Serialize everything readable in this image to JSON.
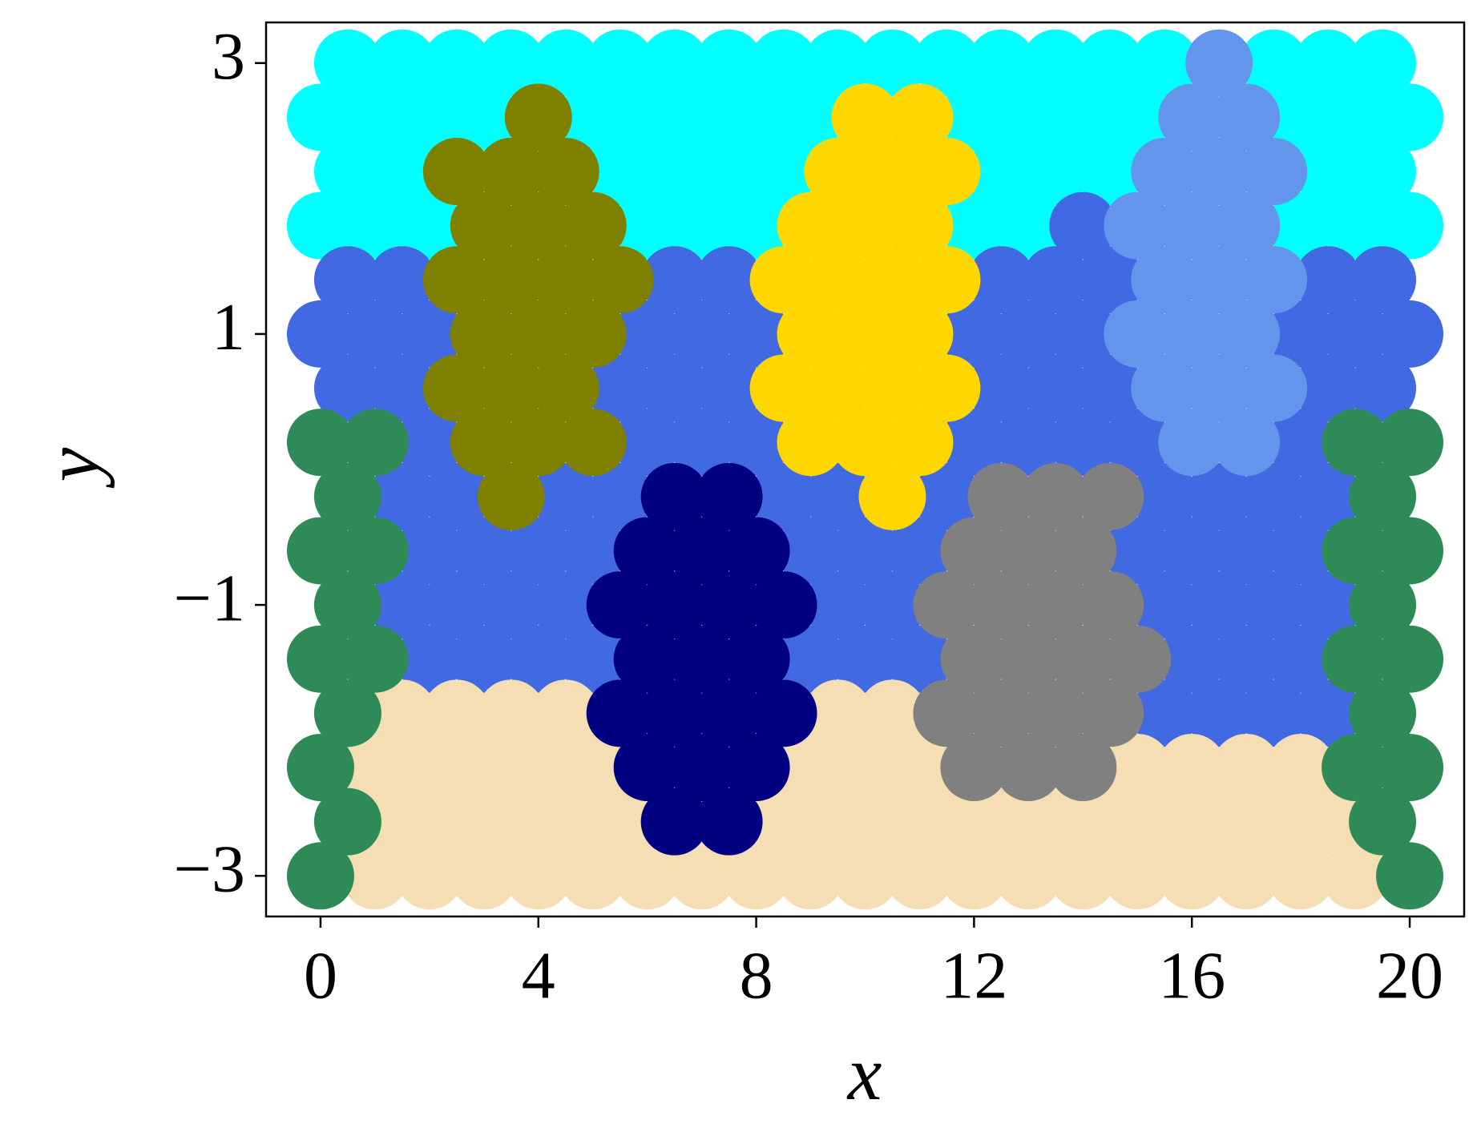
{
  "chart_data": {
    "type": "scatter",
    "x_label": "x",
    "y_label": "y",
    "xlim": [
      -1,
      21
    ],
    "ylim": [
      -3.3,
      3.3
    ],
    "xticks": [
      0,
      4,
      8,
      12,
      16,
      20
    ],
    "yticks": [
      3,
      1,
      {
        "value": -1,
        "label": "−1"
      },
      {
        "value": -3,
        "label": "−3"
      }
    ],
    "grid": false,
    "series": [
      {
        "color": "#00ffff",
        "x": [
          0.5,
          1.5,
          2.5,
          3.5,
          4.5,
          5.5,
          6.5,
          7.5,
          8.5,
          9.5,
          10.5,
          11.5,
          12.5,
          13.5,
          14.5,
          15.5,
          17.5,
          18.5,
          19.5,
          0,
          1,
          2,
          3,
          5,
          6,
          7,
          8,
          9,
          12,
          13,
          14,
          15,
          18,
          19,
          20,
          0.5,
          1.5,
          5.5,
          6.5,
          7.5,
          8.5,
          12.5,
          13.5,
          14.5,
          18.5,
          19.5,
          0,
          1,
          2,
          6,
          7,
          8,
          12,
          13,
          18,
          19,
          20
        ],
        "y": [
          3,
          3,
          3,
          3,
          3,
          3,
          3,
          3,
          3,
          3,
          3,
          3,
          3,
          3,
          3,
          3,
          3,
          3,
          3,
          2.6,
          2.6,
          2.6,
          2.6,
          2.6,
          2.6,
          2.6,
          2.6,
          2.6,
          2.6,
          2.6,
          2.6,
          2.6,
          2.6,
          2.6,
          2.6,
          2.2,
          2.2,
          2.2,
          2.2,
          2.2,
          2.2,
          2.2,
          2.2,
          2.2,
          2.2,
          2.2,
          1.8,
          1.8,
          1.8,
          1.8,
          1.8,
          1.8,
          1.8,
          1.8,
          1.8,
          1.8,
          1.8
        ]
      },
      {
        "color": "#4169e1",
        "x": [
          14,
          0.5,
          1.5,
          6.5,
          7.5,
          12.5,
          13.5,
          14.5,
          18.5,
          19.5,
          0,
          1,
          2,
          6,
          7,
          8,
          12,
          13,
          14,
          18,
          19,
          20,
          0.5,
          1.5,
          5.5,
          6.5,
          7.5,
          12.5,
          13.5,
          14.5,
          18.5,
          19.5,
          2,
          6,
          7,
          8,
          12,
          13,
          14,
          15,
          18,
          1.5,
          2.5,
          4.5,
          5.5,
          8.5,
          9.5,
          11.5,
          15.5,
          16.5,
          17.5,
          18.5,
          2,
          3,
          4,
          5,
          9,
          10,
          11,
          15,
          16,
          17,
          18,
          1.5,
          2.5,
          3.5,
          4.5,
          9.5,
          10.5,
          15.5,
          16.5,
          17.5,
          18.5,
          2,
          3,
          4,
          5,
          9,
          10,
          11,
          16,
          17,
          18,
          15.5,
          16.5,
          17.5,
          18.5
        ],
        "y": [
          1.8,
          1.4,
          1.4,
          1.4,
          1.4,
          1.4,
          1.4,
          1.4,
          1.4,
          1.4,
          1,
          1,
          1,
          1,
          1,
          1,
          1,
          1,
          1,
          1,
          1,
          1,
          0.6,
          0.6,
          0.6,
          0.6,
          0.6,
          0.6,
          0.6,
          0.6,
          0.6,
          0.6,
          0.2,
          0.2,
          0.2,
          0.2,
          0.2,
          0.2,
          0.2,
          0.2,
          0.2,
          -0.2,
          -0.2,
          -0.2,
          -0.2,
          -0.2,
          -0.2,
          -0.2,
          -0.2,
          -0.2,
          -0.2,
          -0.2,
          -0.6,
          -0.6,
          -0.6,
          -0.6,
          -0.6,
          -0.6,
          -0.6,
          -0.6,
          -0.6,
          -0.6,
          -0.6,
          -1,
          -1,
          -1,
          -1,
          -1,
          -1,
          -1,
          -1,
          -1,
          -1,
          -1.4,
          -1.4,
          -1.4,
          -1.4,
          -1.4,
          -1.4,
          -1.4,
          -1.4,
          -1.4,
          -1.4,
          -1.8,
          -1.8,
          -1.8,
          -1.8
        ]
      },
      {
        "color": "#f5deb3",
        "x": [
          1.5,
          2.5,
          3.5,
          4.5,
          9.5,
          10.5,
          1,
          2,
          3,
          4,
          5,
          9,
          10,
          11,
          15,
          16,
          17,
          18,
          1.5,
          2.5,
          3.5,
          4.5,
          5.5,
          8.5,
          9.5,
          10.5,
          11.5,
          12.5,
          13.5,
          14.5,
          15.5,
          16.5,
          17.5,
          18.5,
          1,
          2,
          3,
          4,
          5,
          6,
          7,
          8,
          9,
          10,
          11,
          12,
          13,
          14,
          15,
          16,
          17,
          18,
          19
        ],
        "y": [
          -1.8,
          -1.8,
          -1.8,
          -1.8,
          -1.8,
          -1.8,
          -2.2,
          -2.2,
          -2.2,
          -2.2,
          -2.2,
          -2.2,
          -2.2,
          -2.2,
          -2.2,
          -2.2,
          -2.2,
          -2.2,
          -2.6,
          -2.6,
          -2.6,
          -2.6,
          -2.6,
          -2.6,
          -2.6,
          -2.6,
          -2.6,
          -2.6,
          -2.6,
          -2.6,
          -2.6,
          -2.6,
          -2.6,
          -2.6,
          -3,
          -3,
          -3,
          -3,
          -3,
          -3,
          -3,
          -3,
          -3,
          -3,
          -3,
          -3,
          -3,
          -3,
          -3,
          -3,
          -3,
          -3,
          -3
        ]
      },
      {
        "color": "#2e8b57",
        "x": [
          0,
          1,
          19,
          20,
          0.5,
          19.5,
          0,
          1,
          19,
          20,
          0.5,
          19.5,
          0,
          1,
          19,
          20,
          0.5,
          19.5,
          0,
          19,
          20,
          0.5,
          19.5,
          0,
          20
        ],
        "y": [
          0.2,
          0.2,
          0.2,
          0.2,
          -0.2,
          -0.2,
          -0.6,
          -0.6,
          -0.6,
          -0.6,
          -1,
          -1,
          -1.4,
          -1.4,
          -1.4,
          -1.4,
          -1.8,
          -1.8,
          -2.2,
          -2.2,
          -2.2,
          -2.6,
          -2.6,
          -3,
          -3
        ]
      },
      {
        "color": "#808000",
        "x": [
          4,
          2.5,
          3.5,
          4.5,
          3,
          4,
          5,
          2.5,
          3.5,
          4.5,
          5.5,
          3,
          4,
          5,
          2.5,
          3.5,
          4.5,
          3,
          4,
          5,
          3.5
        ],
        "y": [
          2.6,
          2.2,
          2.2,
          2.2,
          1.8,
          1.8,
          1.8,
          1.4,
          1.4,
          1.4,
          1.4,
          1,
          1,
          1,
          0.6,
          0.6,
          0.6,
          0.2,
          0.2,
          0.2,
          -0.2
        ]
      },
      {
        "color": "#ffd700",
        "x": [
          10,
          11,
          9.5,
          10.5,
          11.5,
          9,
          10,
          11,
          8.5,
          9.5,
          10.5,
          11.5,
          9,
          10,
          11,
          8.5,
          9.5,
          10.5,
          11.5,
          9,
          10,
          11,
          10.5
        ],
        "y": [
          2.6,
          2.6,
          2.2,
          2.2,
          2.2,
          1.8,
          1.8,
          1.8,
          1.4,
          1.4,
          1.4,
          1.4,
          1,
          1,
          1,
          0.6,
          0.6,
          0.6,
          0.6,
          0.2,
          0.2,
          0.2,
          -0.2
        ]
      },
      {
        "color": "#6495ed",
        "x": [
          16.5,
          16,
          17,
          15.5,
          16.5,
          17.5,
          15,
          16,
          17,
          15.5,
          16.5,
          17.5,
          15,
          16,
          17,
          15.5,
          16.5,
          17.5,
          16,
          17
        ],
        "y": [
          3,
          2.6,
          2.6,
          2.2,
          2.2,
          2.2,
          1.8,
          1.8,
          1.8,
          1.4,
          1.4,
          1.4,
          1,
          1,
          1,
          0.6,
          0.6,
          0.6,
          0.2,
          0.2
        ]
      },
      {
        "color": "#000080",
        "x": [
          6.5,
          7.5,
          6,
          7,
          8,
          5.5,
          6.5,
          7.5,
          8.5,
          6,
          7,
          8,
          5.5,
          6.5,
          7.5,
          8.5,
          6,
          7,
          8,
          6.5,
          7.5
        ],
        "y": [
          -0.2,
          -0.2,
          -0.6,
          -0.6,
          -0.6,
          -1,
          -1,
          -1,
          -1,
          -1.4,
          -1.4,
          -1.4,
          -1.8,
          -1.8,
          -1.8,
          -1.8,
          -2.2,
          -2.2,
          -2.2,
          -2.6,
          -2.6
        ]
      },
      {
        "color": "#808080",
        "x": [
          12.5,
          13.5,
          14.5,
          12,
          13,
          14,
          11.5,
          12.5,
          13.5,
          14.5,
          12,
          13,
          14,
          15,
          11.5,
          12.5,
          13.5,
          14.5,
          12,
          13,
          14
        ],
        "y": [
          -0.2,
          -0.2,
          -0.2,
          -0.6,
          -0.6,
          -0.6,
          -1,
          -1,
          -1,
          -1,
          -1.4,
          -1.4,
          -1.4,
          -1.4,
          -1.8,
          -1.8,
          -1.8,
          -1.8,
          -2.2,
          -2.2,
          -2.2
        ]
      }
    ]
  }
}
